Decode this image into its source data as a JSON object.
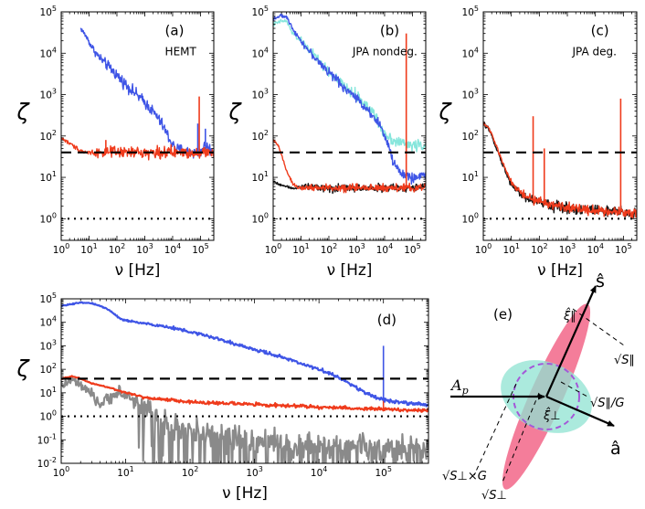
{
  "colors": {
    "blue": "#3f55e6",
    "red": "#ef3b1c",
    "cyan": "#86e6dc",
    "black": "#141414",
    "gray": "#8a8a8a",
    "pink": "#f26688",
    "teal": "#8fe3d2",
    "purple": "#a458d8"
  },
  "panel_e": {
    "label": "(e)",
    "s_label": "ŝ",
    "a_label": "â",
    "ap_label": "A",
    "ap_sub": "p",
    "xi_par": "ξ̂∥",
    "xi_perp": "ξ̂⊥",
    "sqrt_spar": "√S∥",
    "sqrt_spar_g": "√S∥/G",
    "sqrt_sperp_g": "√S⊥×G",
    "sqrt_sperp": "√S⊥"
  },
  "chart_data": [
    {
      "id": "a",
      "type": "line",
      "label": "(a)",
      "title": "HEMT",
      "xlabel": "ν [Hz]",
      "ylabel": "ζ",
      "xscale": "log",
      "yscale": "log",
      "xlim": [
        1,
        300000
      ],
      "ylim": [
        0.3,
        100000
      ],
      "x_ticks": [
        "10^0",
        "10^1",
        "10^2",
        "10^3",
        "10^4",
        "10^5"
      ],
      "y_ticks": [
        "10^0",
        "10^1",
        "10^2",
        "10^3",
        "10^4",
        "10^5"
      ],
      "hlines": [
        {
          "y": 40,
          "style": "dashed"
        },
        {
          "y": 1,
          "style": "dotted"
        }
      ],
      "series": [
        {
          "name": "blue",
          "color": "blue",
          "noise": 0.12,
          "x": [
            5,
            8,
            12,
            20,
            40,
            80,
            150,
            300,
            600,
            1000,
            1500,
            2500,
            4000,
            6000,
            8000,
            10000,
            15000,
            30000,
            60000,
            100000,
            150000,
            200000,
            300000
          ],
          "y": [
            40000,
            25000,
            15000,
            9000,
            5500,
            3500,
            2200,
            1400,
            900,
            650,
            480,
            320,
            200,
            120,
            80,
            60,
            48,
            42,
            40,
            40,
            60,
            50,
            40
          ],
          "spikes": [
            [
              80000,
              200
            ],
            [
              150000,
              150
            ]
          ]
        },
        {
          "name": "red",
          "color": "red",
          "noise": 0.12,
          "x": [
            1,
            1.5,
            3,
            5,
            8,
            10,
            20,
            50,
            100,
            200,
            500,
            1000,
            2000,
            4000,
            10000,
            30000,
            100000,
            200000,
            300000
          ],
          "y": [
            90,
            75,
            55,
            45,
            40,
            40,
            40,
            40,
            40,
            40,
            40,
            40,
            40,
            40,
            40,
            40,
            40,
            40,
            40
          ],
          "spikes": [
            [
              40,
              80
            ],
            [
              90000,
              900
            ]
          ]
        }
      ]
    },
    {
      "id": "b",
      "type": "line",
      "label": "(b)",
      "title": "JPA nondeg.",
      "xlabel": "ν [Hz]",
      "ylabel": "ζ",
      "xscale": "log",
      "yscale": "log",
      "xlim": [
        1,
        300000
      ],
      "ylim": [
        0.3,
        100000
      ],
      "x_ticks": [
        "10^0",
        "10^1",
        "10^2",
        "10^3",
        "10^4",
        "10^5"
      ],
      "y_ticks": [
        "10^0",
        "10^1",
        "10^2",
        "10^3",
        "10^4",
        "10^5"
      ],
      "hlines": [
        {
          "y": 40,
          "style": "dashed"
        },
        {
          "y": 1,
          "style": "dotted"
        }
      ],
      "series": [
        {
          "name": "cyan",
          "color": "cyan",
          "noise": 0.12,
          "x": [
            1,
            1.5,
            2,
            3,
            5,
            10,
            20,
            50,
            100,
            200,
            500,
            1000,
            2000,
            4000,
            6000,
            10000,
            20000,
            50000,
            100000,
            200000,
            300000
          ],
          "y": [
            50000,
            55000,
            60000,
            60000,
            30000,
            20000,
            12000,
            6000,
            3500,
            2200,
            1300,
            900,
            600,
            350,
            200,
            120,
            80,
            65,
            60,
            60,
            60
          ]
        },
        {
          "name": "blue",
          "color": "blue",
          "noise": 0.1,
          "x": [
            1,
            2,
            3,
            5,
            10,
            20,
            50,
            100,
            200,
            500,
            1000,
            2000,
            3000,
            5000,
            8000,
            12000,
            20000,
            40000,
            80000,
            150000,
            300000
          ],
          "y": [
            70000,
            80000,
            75000,
            40000,
            20000,
            11000,
            5500,
            3500,
            2200,
            1200,
            800,
            500,
            380,
            250,
            150,
            70,
            25,
            12,
            10,
            10,
            12
          ]
        },
        {
          "name": "black",
          "color": "black",
          "noise": 0.08,
          "x": [
            1,
            2,
            5,
            10,
            20,
            50,
            100,
            200,
            500,
            1000,
            5000,
            20000,
            100000,
            300000
          ],
          "y": [
            8,
            6.5,
            5.5,
            6,
            6,
            6,
            5.5,
            5.5,
            5.5,
            5.5,
            5.5,
            5.5,
            5.5,
            6
          ]
        },
        {
          "name": "red",
          "color": "red",
          "noise": 0.08,
          "x": [
            1,
            1.5,
            2,
            3,
            5,
            8,
            12,
            20,
            40,
            100,
            300,
            1000,
            5000,
            20000,
            100000,
            300000
          ],
          "y": [
            80,
            60,
            35,
            15,
            7,
            5.5,
            5.5,
            5.5,
            5.5,
            5.5,
            5.5,
            5.5,
            5.5,
            5.5,
            5.5,
            6
          ],
          "spikes": [
            [
              60000,
              30000
            ]
          ]
        }
      ]
    },
    {
      "id": "c",
      "type": "line",
      "label": "(c)",
      "title": "JPA deg.",
      "xlabel": "ν [Hz]",
      "ylabel": "ζ",
      "xscale": "log",
      "yscale": "log",
      "xlim": [
        1,
        300000
      ],
      "ylim": [
        0.3,
        100000
      ],
      "x_ticks": [
        "10^0",
        "10^1",
        "10^2",
        "10^3",
        "10^4",
        "10^5"
      ],
      "y_ticks": [
        "10^0",
        "10^1",
        "10^2",
        "10^3",
        "10^4",
        "10^5"
      ],
      "hlines": [
        {
          "y": 40,
          "style": "dashed"
        },
        {
          "y": 1,
          "style": "dotted"
        }
      ],
      "series": [
        {
          "name": "black",
          "color": "black",
          "noise": 0.12,
          "x": [
            1,
            1.5,
            2,
            3,
            5,
            8,
            12,
            20,
            40,
            100,
            300,
            1000,
            3000,
            10000,
            30000,
            100000,
            300000
          ],
          "y": [
            200,
            150,
            100,
            50,
            20,
            9,
            6,
            4,
            3,
            2.5,
            2,
            1.8,
            1.7,
            1.6,
            1.5,
            1.4,
            1.4
          ]
        },
        {
          "name": "red",
          "color": "red",
          "noise": 0.1,
          "x": [
            1,
            1.5,
            2,
            3,
            5,
            8,
            12,
            20,
            40,
            100,
            300,
            1000,
            3000,
            10000,
            30000,
            100000,
            300000
          ],
          "y": [
            200,
            160,
            110,
            55,
            22,
            10,
            6.5,
            4.5,
            3.2,
            2.6,
            2.1,
            1.9,
            1.7,
            1.6,
            1.5,
            1.45,
            1.4
          ],
          "spikes": [
            [
              60,
              300
            ],
            [
              150,
              50
            ],
            [
              80000,
              800
            ]
          ]
        }
      ]
    },
    {
      "id": "d",
      "type": "line",
      "label": "(d)",
      "xlabel": "ν [Hz]",
      "ylabel": "ζ",
      "xscale": "log",
      "yscale": "log",
      "xlim": [
        1,
        500000
      ],
      "ylim": [
        0.01,
        100000
      ],
      "x_ticks": [
        "10^0",
        "10^1",
        "10^2",
        "10^3",
        "10^4",
        "10^5"
      ],
      "y_ticks": [
        "10^-2",
        "10^-1",
        "10^0",
        "10^1",
        "10^2",
        "10^3",
        "10^4",
        "10^5"
      ],
      "hlines": [
        {
          "y": 40,
          "style": "dashed"
        },
        {
          "y": 1,
          "style": "dotted"
        }
      ],
      "series": [
        {
          "name": "gray",
          "color": "gray",
          "noise": 0.5,
          "x": [
            1,
            1.5,
            2,
            3,
            4,
            5,
            7,
            10,
            15,
            20,
            30,
            50,
            100,
            200,
            500,
            1000,
            3000,
            10000,
            30000,
            100000,
            300000,
            500000
          ],
          "y": [
            20,
            35,
            20,
            8,
            3,
            5,
            10,
            8,
            4,
            3,
            1.2,
            0.4,
            0.2,
            0.15,
            0.1,
            0.08,
            0.06,
            0.05,
            0.05,
            0.04,
            0.04,
            0.04
          ]
        },
        {
          "name": "red",
          "color": "red",
          "noise": 0.06,
          "x": [
            1,
            1.5,
            2,
            3,
            5,
            8,
            10,
            15,
            20,
            50,
            100,
            500,
            1000,
            10000,
            100000,
            300000,
            500000
          ],
          "y": [
            40,
            50,
            40,
            25,
            18,
            12,
            10,
            8,
            6,
            5,
            4,
            3.5,
            3.2,
            2.5,
            2,
            1.8,
            1.8
          ],
          "spikes": [
            [
              100000,
              5
            ]
          ]
        },
        {
          "name": "blue",
          "color": "blue",
          "noise": 0.06,
          "x": [
            1,
            1.5,
            2,
            3,
            5,
            8,
            10,
            20,
            50,
            100,
            200,
            500,
            1000,
            3000,
            10000,
            20000,
            40000,
            80000,
            150000,
            300000,
            500000
          ],
          "y": [
            50000,
            60000,
            70000,
            65000,
            40000,
            15000,
            12000,
            9000,
            6000,
            4000,
            2500,
            1200,
            700,
            300,
            100,
            45,
            15,
            6,
            4,
            3.5,
            3
          ],
          "spikes": [
            [
              100000,
              1000
            ]
          ]
        }
      ]
    }
  ]
}
